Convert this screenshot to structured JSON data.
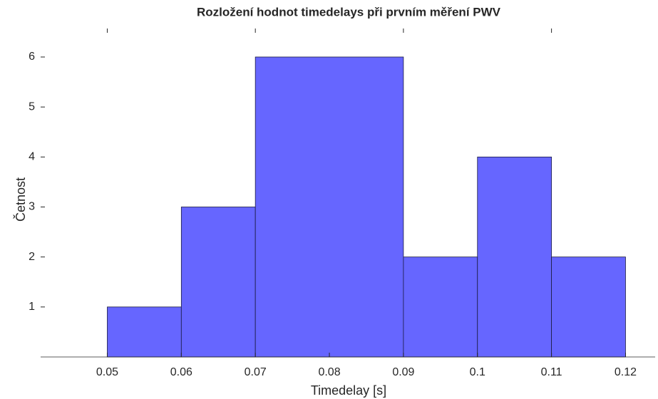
{
  "chart_data": {
    "type": "histogram",
    "title": "Rozložení hodnot timedelays při prvním měření PWV",
    "xlabel": "Timedelay [s]",
    "ylabel": "Četnost",
    "bins": [
      0.05,
      0.06,
      0.07,
      0.09,
      0.1,
      0.11,
      0.12
    ],
    "values": [
      1,
      3,
      6,
      2,
      4,
      2
    ],
    "color": "#6666ff",
    "xlim": [
      0.041,
      0.124
    ],
    "xticks": [
      0.05,
      0.06,
      0.07,
      0.08,
      0.09,
      0.1,
      0.11,
      0.12
    ],
    "ylim": [
      0,
      6.57
    ],
    "yticks": [
      1,
      2,
      3,
      4,
      5,
      6
    ]
  }
}
